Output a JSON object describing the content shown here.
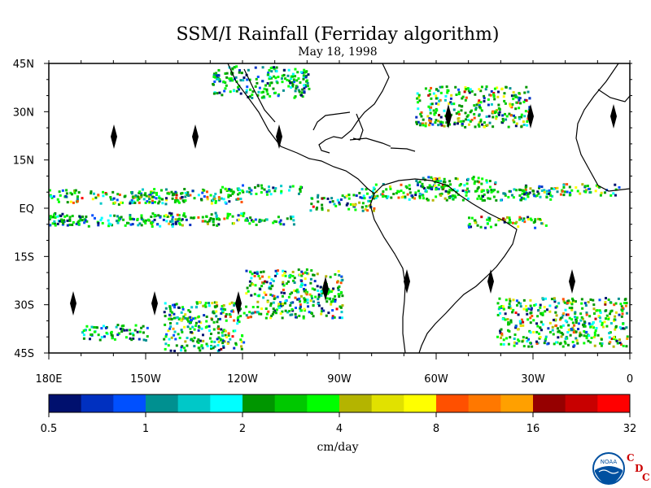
{
  "title": "SSM/I Rainfall (Ferriday algorithm)",
  "subtitle": "May 18, 1998",
  "map": {
    "lat_labels": [
      "45N",
      "30N",
      "15N",
      "EQ",
      "15S",
      "30S",
      "45S"
    ],
    "lat_values": [
      45,
      30,
      15,
      0,
      -15,
      -30,
      -45
    ],
    "lon_labels": [
      "180E",
      "150W",
      "120W",
      "90W",
      "60W",
      "30W",
      "0"
    ],
    "lon_values": [
      -180,
      -150,
      -120,
      -90,
      -60,
      -30,
      0
    ],
    "lon_range": [
      -180,
      0
    ],
    "lat_range": [
      -45,
      45
    ]
  },
  "colorbar": {
    "tick_labels": [
      "0.5",
      "1",
      "2",
      "4",
      "8",
      "16",
      "32"
    ],
    "tick_values": [
      0.5,
      1,
      2,
      4,
      8,
      16,
      32
    ],
    "unit": "cm/day",
    "colors": [
      "#00106e",
      "#0030c0",
      "#0050ff",
      "#009090",
      "#00c8c8",
      "#00ffff",
      "#009600",
      "#00c800",
      "#00ff00",
      "#b4b400",
      "#e1e100",
      "#ffff00",
      "#ff5000",
      "#ff7800",
      "#ffa000",
      "#960000",
      "#c80000",
      "#ff0000"
    ]
  },
  "logo": {
    "text": "NOAA",
    "letters": [
      "C",
      "D",
      "C"
    ]
  }
}
